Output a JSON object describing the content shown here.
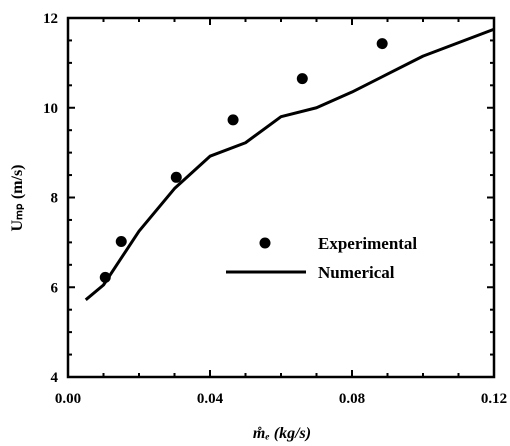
{
  "chart_data": {
    "type": "scatter",
    "xlabel": "m̊ₑ (kg/s)",
    "ylabel": "Uₘₚ (m/s)",
    "xlim": [
      0.0,
      0.12
    ],
    "ylim": [
      4,
      12
    ],
    "x_ticks": [
      "0.00",
      "0.04",
      "0.08",
      "0.12"
    ],
    "y_ticks": [
      "4",
      "6",
      "8",
      "10",
      "12"
    ],
    "x_tick_values": [
      0.0,
      0.04,
      0.08,
      0.12
    ],
    "y_tick_values": [
      4,
      6,
      8,
      10,
      12
    ],
    "x_minor_step": 0.01,
    "y_minor_step": 0.5,
    "grid": false,
    "legend_position": "center-right",
    "series": [
      {
        "name": "Experimental",
        "type": "scatter",
        "marker": "filled-circle",
        "color": "#000000",
        "x": [
          0.0105,
          0.015,
          0.0305,
          0.0465,
          0.066,
          0.0885
        ],
        "y": [
          6.22,
          7.02,
          8.45,
          9.73,
          10.65,
          11.43
        ]
      },
      {
        "name": "Numerical",
        "type": "line",
        "color": "#000000",
        "x": [
          0.005,
          0.01,
          0.015,
          0.02,
          0.03,
          0.04,
          0.05,
          0.06,
          0.07,
          0.08,
          0.09,
          0.1,
          0.12
        ],
        "y": [
          5.72,
          6.05,
          6.65,
          7.25,
          8.2,
          8.92,
          9.22,
          9.8,
          10.0,
          10.35,
          10.75,
          11.15,
          11.75
        ]
      }
    ]
  }
}
